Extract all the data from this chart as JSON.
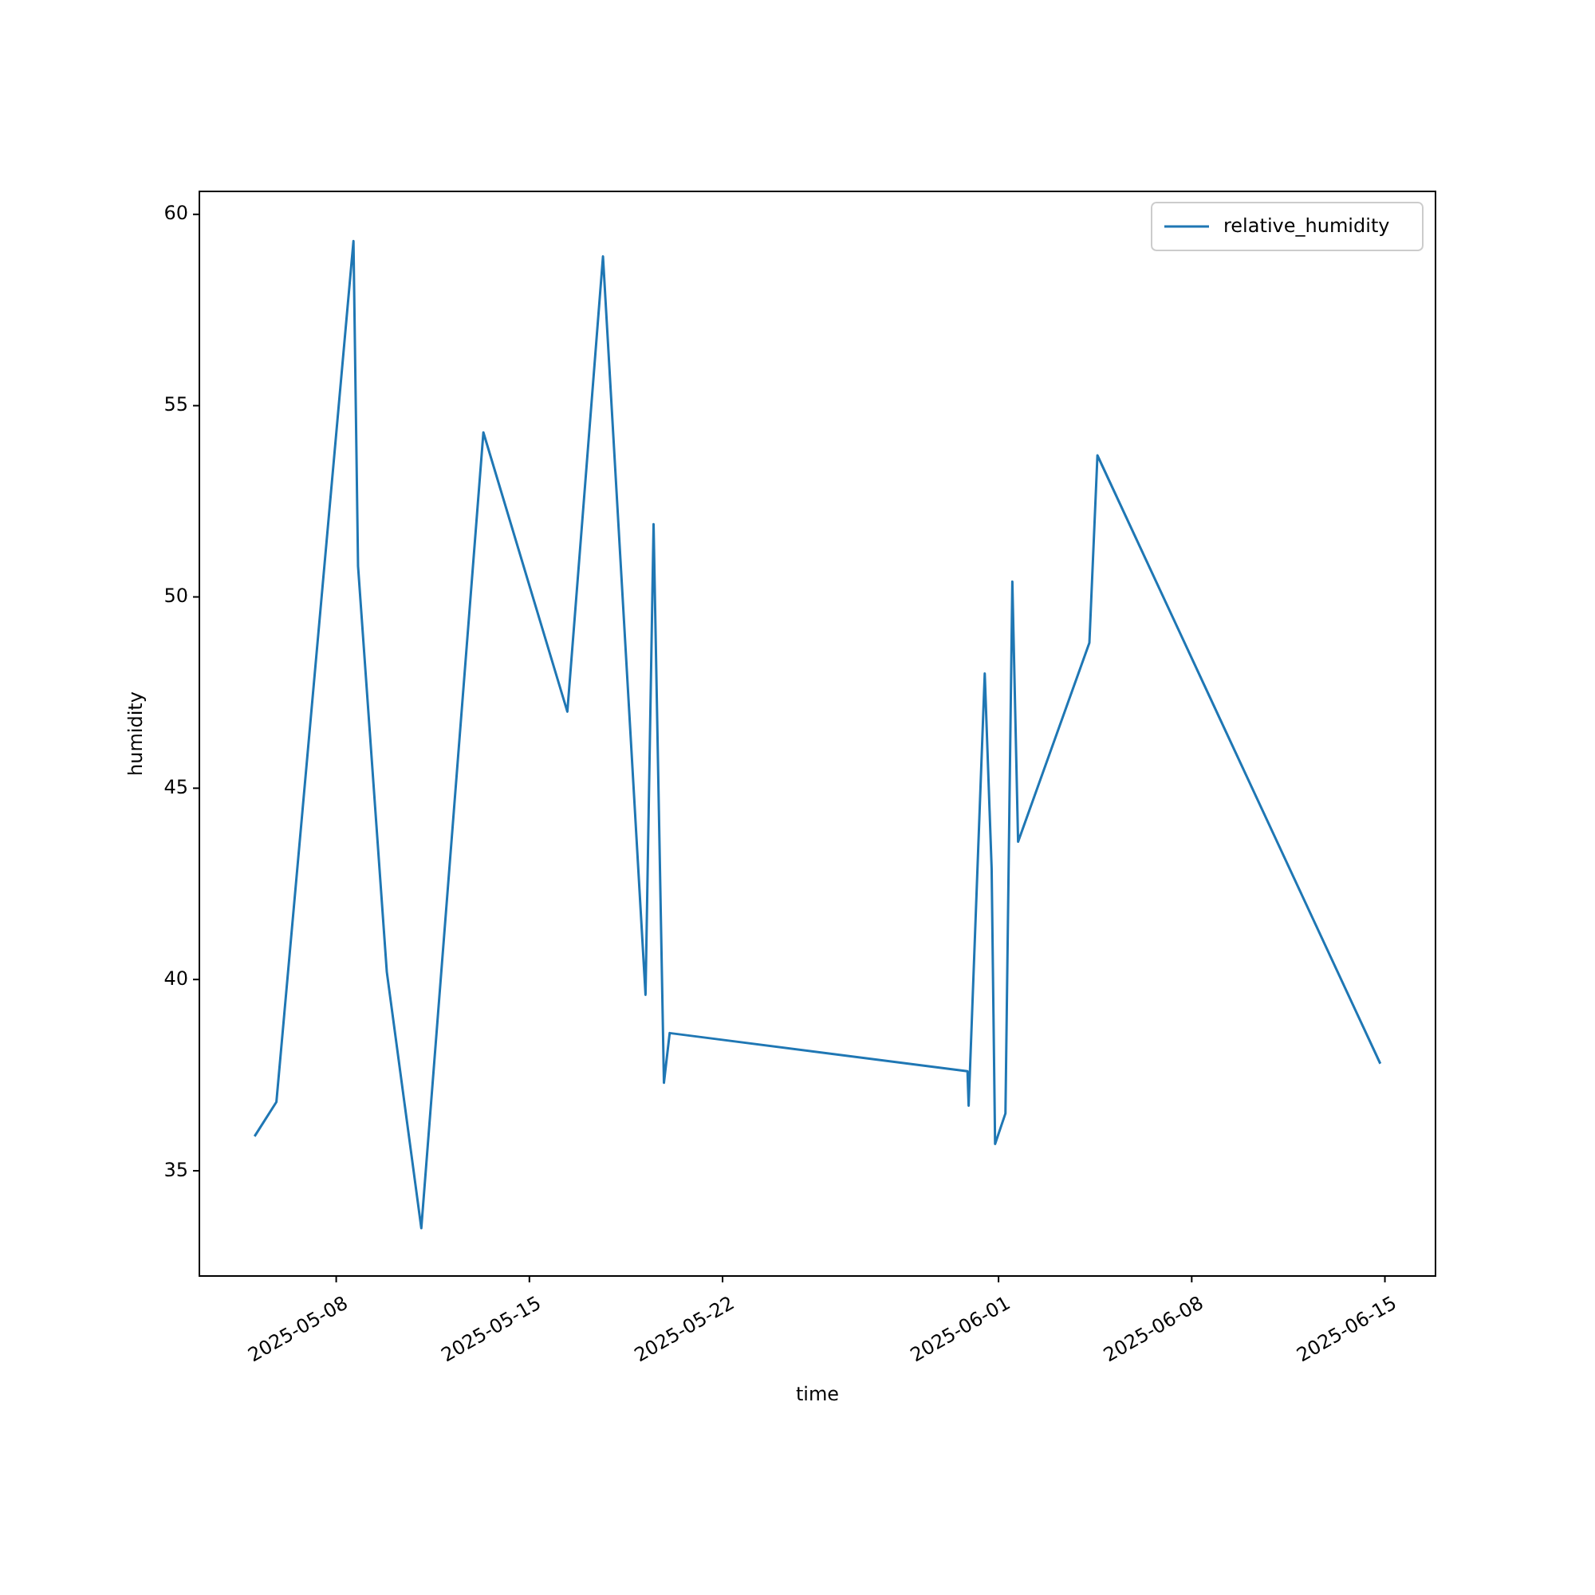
{
  "chart_data": {
    "type": "line",
    "xlabel": "time",
    "ylabel": "humidity",
    "x": [
      "2025-05-05T01:00",
      "2025-05-05T20:00",
      "2025-05-08T15:00",
      "2025-05-08T19:00",
      "2025-05-09T20:00",
      "2025-05-11T02:00",
      "2025-05-13T08:00",
      "2025-05-16T09:00",
      "2025-05-17T16:00",
      "2025-05-19T05:00",
      "2025-05-19T12:00",
      "2025-05-19T21:00",
      "2025-05-20T02:00",
      "2025-05-30T21:00",
      "2025-05-30T22:00",
      "2025-05-31T12:00",
      "2025-05-31T18:00",
      "2025-05-31T21:00",
      "2025-06-01T06:00",
      "2025-06-01T12:00",
      "2025-06-01T17:00",
      "2025-06-04T07:00",
      "2025-06-04T14:00",
      "2025-06-14T20:00"
    ],
    "series": [
      {
        "name": "relative_humidity",
        "color": "#1f77b4",
        "values": [
          35.9,
          36.8,
          59.3,
          50.8,
          40.2,
          33.5,
          54.3,
          47.0,
          58.9,
          39.6,
          51.9,
          37.3,
          38.6,
          37.6,
          36.7,
          48.0,
          42.9,
          35.7,
          36.5,
          50.4,
          43.6,
          48.8,
          53.7,
          37.8
        ]
      }
    ],
    "xlim": [
      "2025-05-03T01:00",
      "2025-06-16T20:00"
    ],
    "ylim": [
      32.25,
      60.6
    ],
    "xticks": [
      {
        "value": "2025-05-08",
        "label": "2025-05-08"
      },
      {
        "value": "2025-05-15",
        "label": "2025-05-15"
      },
      {
        "value": "2025-05-22",
        "label": "2025-05-22"
      },
      {
        "value": "2025-06-01",
        "label": "2025-06-01"
      },
      {
        "value": "2025-06-08",
        "label": "2025-06-08"
      },
      {
        "value": "2025-06-15",
        "label": "2025-06-15"
      }
    ],
    "yticks": [
      35,
      40,
      45,
      50,
      55,
      60
    ],
    "legend": "top right",
    "grid": false,
    "marker": "none",
    "line_style": "solid"
  }
}
